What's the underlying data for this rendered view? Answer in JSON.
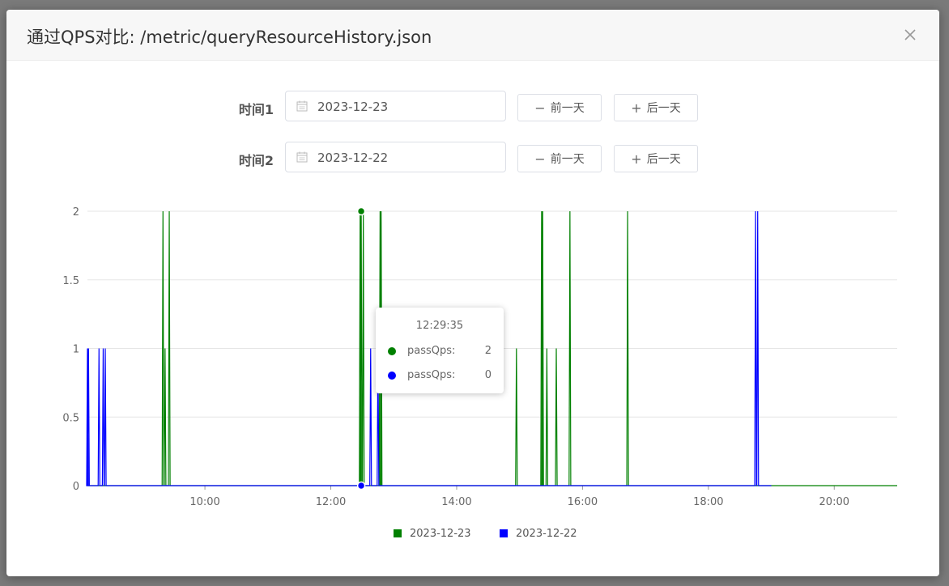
{
  "modal": {
    "title": "通过QPS对比: /metric/queryResourceHistory.json",
    "close_icon": "close-icon"
  },
  "form": {
    "row1": {
      "label": "时间1",
      "date": "2023-12-23",
      "prev": "前一天",
      "next": "后一天"
    },
    "row2": {
      "label": "时间2",
      "date": "2023-12-22",
      "prev": "前一天",
      "next": "后一天"
    }
  },
  "tooltip": {
    "time": "12:29:35",
    "rows": [
      {
        "name": "passQps:",
        "value": "2",
        "color": "#008000"
      },
      {
        "name": "passQps:",
        "value": "0",
        "color": "#0000ff"
      }
    ]
  },
  "chart_data": {
    "type": "line",
    "xlim": [
      "08:08",
      "21:00"
    ],
    "ylim": [
      0,
      2
    ],
    "yticks": [
      "0",
      "0.5",
      "1",
      "1.5",
      "2"
    ],
    "xticks": [
      "10:00",
      "12:00",
      "14:00",
      "16:00",
      "18:00",
      "20:00"
    ],
    "grid": true,
    "legend_position": "bottom",
    "series": [
      {
        "name": "2023-12-23",
        "color": "#008000",
        "spikes": [
          [
            "09:20",
            2
          ],
          [
            "09:22",
            1
          ],
          [
            "09:26",
            2
          ],
          [
            "12:28",
            2
          ],
          [
            "12:29",
            2
          ],
          [
            "12:31",
            2
          ],
          [
            "12:47",
            2
          ],
          [
            "12:48",
            2
          ],
          [
            "14:57",
            1
          ],
          [
            "15:21",
            2
          ],
          [
            "15:22",
            2
          ],
          [
            "15:26",
            1
          ],
          [
            "15:35",
            1
          ],
          [
            "15:48",
            2
          ],
          [
            "16:43",
            2
          ]
        ],
        "ends_at": "21:00"
      },
      {
        "name": "2023-12-22",
        "color": "#0000ff",
        "spikes": [
          [
            "08:08",
            1
          ],
          [
            "08:09",
            1
          ],
          [
            "08:19",
            1
          ],
          [
            "08:23",
            1
          ],
          [
            "08:25",
            1
          ],
          [
            "12:38",
            1
          ],
          [
            "12:45",
            1
          ],
          [
            "18:45",
            2
          ],
          [
            "18:47",
            2
          ]
        ],
        "ends_at": "19:00"
      }
    ]
  }
}
